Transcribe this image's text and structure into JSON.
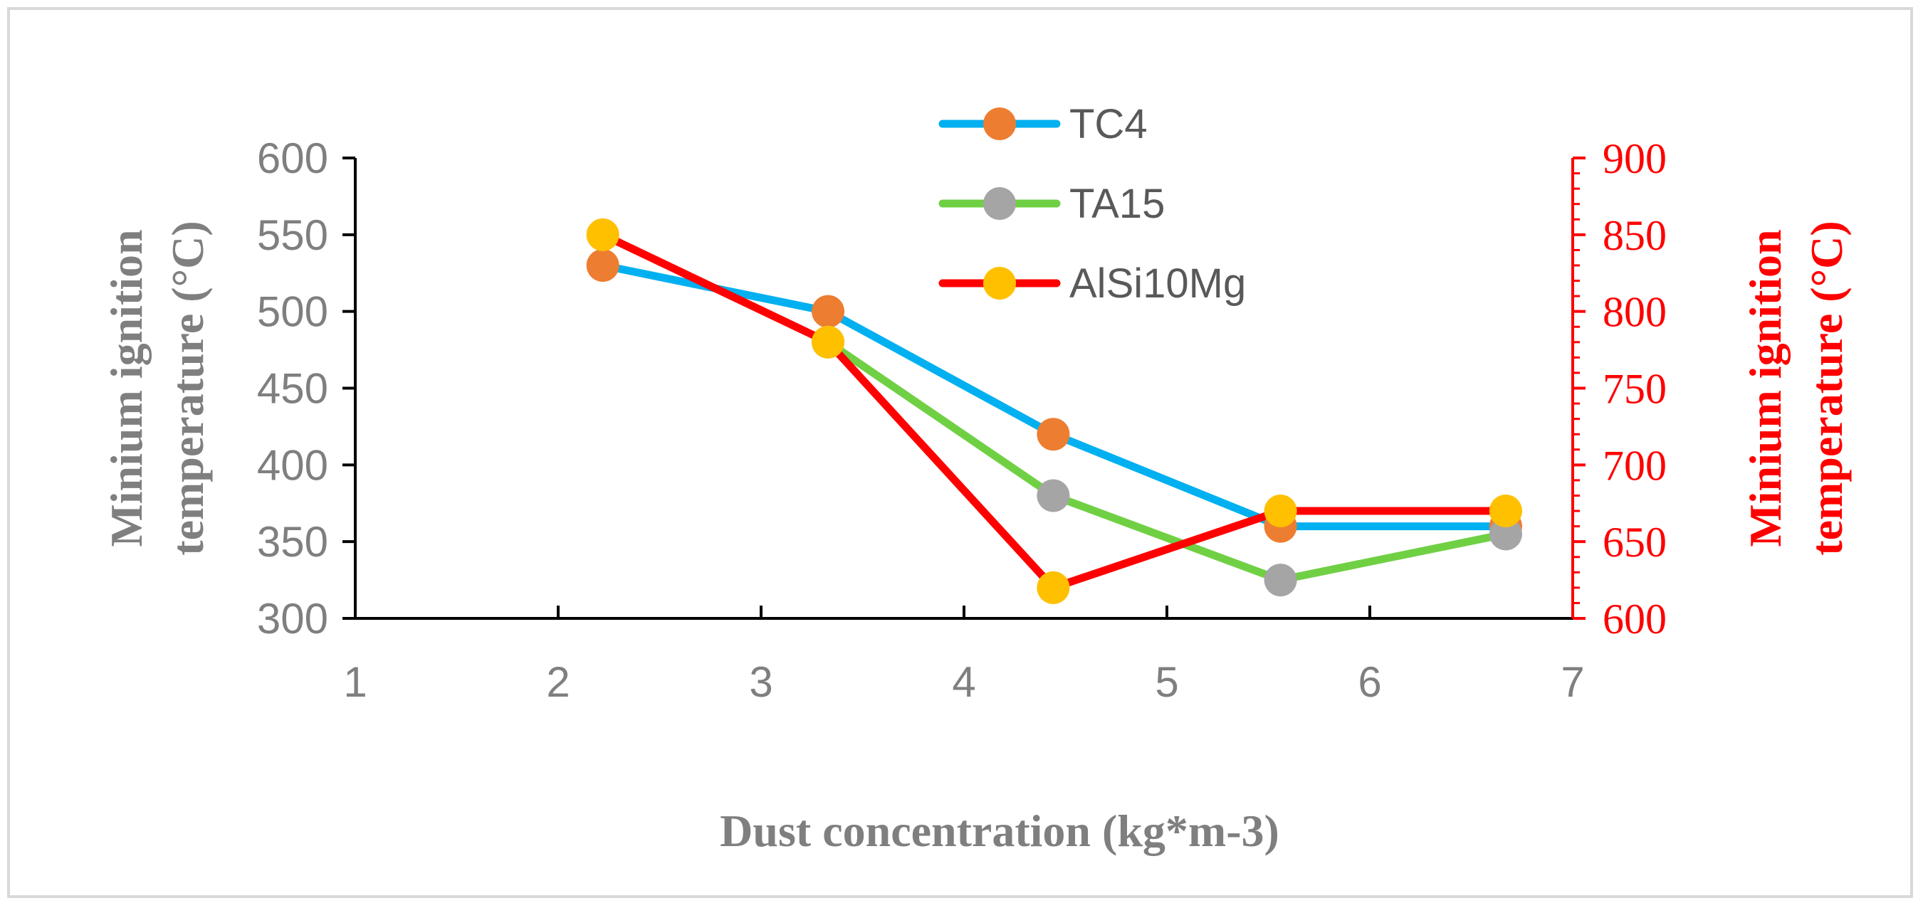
{
  "chart_data": {
    "type": "line",
    "title": "",
    "xlabel": "Dust concentration (kg*m-3)",
    "ylabel_left": "Minium ignition temperature (°C)",
    "ylabel_right": "Minium ignition temperature (°C)",
    "ylabel_left_lines": [
      "Minium ignition",
      "temperature (°C)"
    ],
    "ylabel_right_lines": [
      "Minium ignition",
      "temperature (°C)"
    ],
    "x": [
      2.22,
      3.33,
      4.44,
      5.56,
      6.67
    ],
    "xlim": [
      1,
      7
    ],
    "x_ticks": [
      "1",
      "2",
      "3",
      "4",
      "5",
      "6",
      "7"
    ],
    "ylim_left": [
      300,
      600
    ],
    "y_ticks_left": [
      "600",
      "550",
      "500",
      "450",
      "400",
      "350",
      "300"
    ],
    "ylim_right": [
      600,
      900
    ],
    "y_ticks_right": [
      "900",
      "850",
      "800",
      "750",
      "700",
      "650",
      "600"
    ],
    "grid": false,
    "legend_position": "top-center",
    "series": [
      {
        "name": "TC4",
        "axis": "left",
        "line_color": "#00b0f0",
        "marker_color": "#ed7d31",
        "values": [
          530,
          500,
          420,
          360,
          360
        ]
      },
      {
        "name": "TA15",
        "axis": "left",
        "line_color": "#70d044",
        "marker_color": "#a5a5a5",
        "values": [
          null,
          480,
          380,
          325,
          355
        ]
      },
      {
        "name": "AlSi10Mg",
        "axis": "right",
        "line_color": "#ff0000",
        "marker_color": "#ffc000",
        "values": [
          850,
          780,
          620,
          670,
          670
        ]
      }
    ]
  }
}
